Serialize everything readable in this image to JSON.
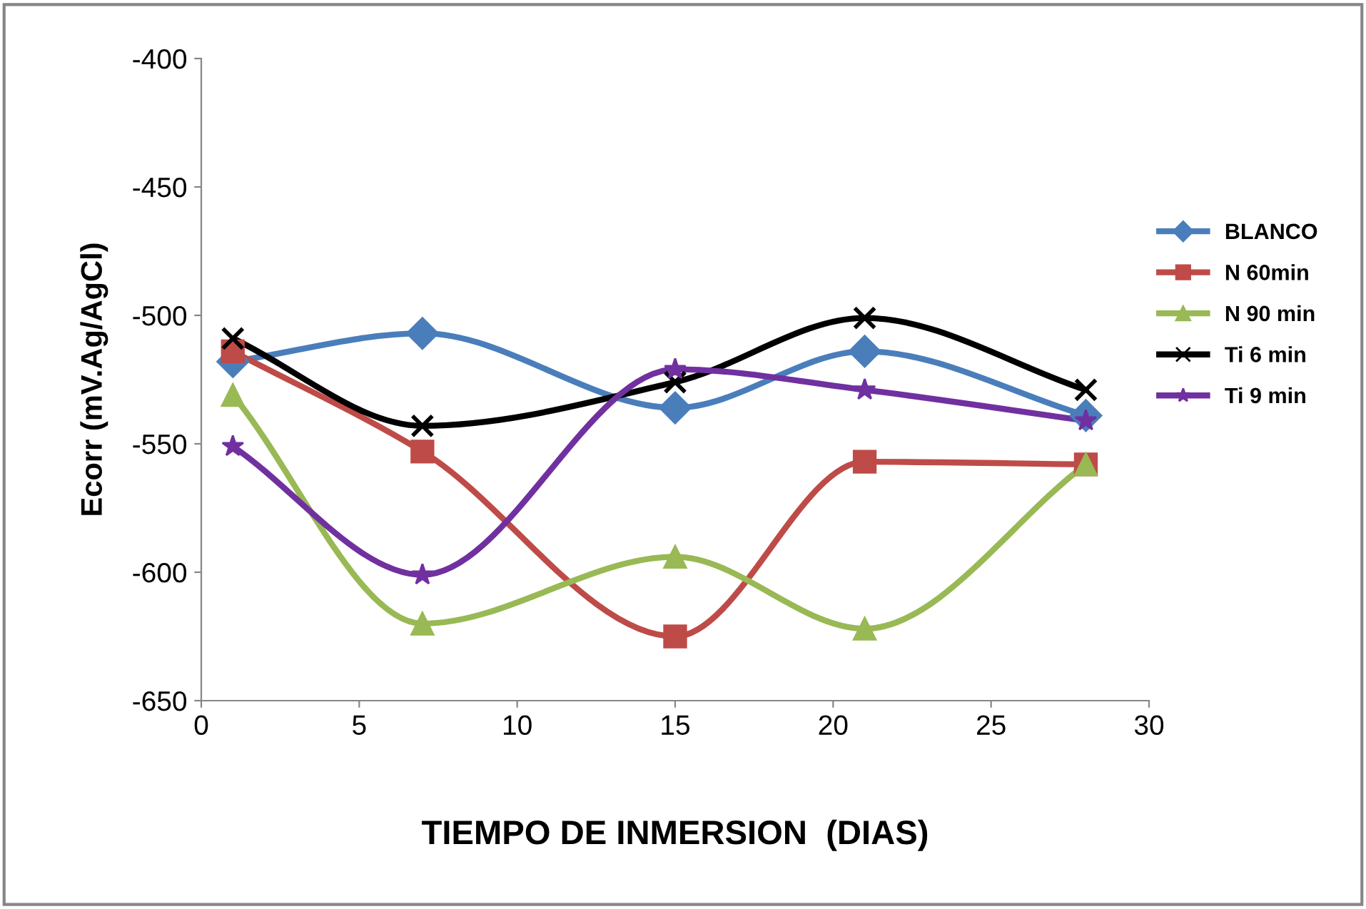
{
  "chart_data": {
    "type": "line",
    "xlabel": "TIEMPO DE INMERSION  (DIAS)",
    "ylabel": "Ecorr (mV.Ag/AgCl)",
    "x": [
      1,
      7,
      15,
      21,
      28
    ],
    "series": [
      {
        "name": "BLANCO",
        "color": "#4a7ebb",
        "marker": "diamond",
        "values": [
          -518,
          -507,
          -536,
          -514,
          -539
        ]
      },
      {
        "name": "N 60min",
        "color": "#be4b48",
        "marker": "square",
        "values": [
          -514,
          -553,
          -625,
          -557,
          -558
        ]
      },
      {
        "name": "N 90 min",
        "color": "#98b954",
        "marker": "triangle",
        "values": [
          -531,
          -620,
          -594,
          -622,
          -558
        ]
      },
      {
        "name": "Ti 6 min",
        "color": "#000000",
        "marker": "cross",
        "values": [
          -509,
          -543,
          -526,
          -501,
          -529
        ]
      },
      {
        "name": "Ti 9 min",
        "color": "#7030a0",
        "marker": "star",
        "values": [
          -551,
          -601,
          -521,
          -529,
          -541
        ]
      }
    ],
    "xlim": [
      0,
      30
    ],
    "xticks": [
      0,
      5,
      10,
      15,
      20,
      25,
      30
    ],
    "ylim": [
      -650,
      -400
    ],
    "yticks": [
      -650,
      -600,
      -550,
      -500,
      -450,
      -400
    ],
    "grid": false,
    "legend": "right"
  }
}
